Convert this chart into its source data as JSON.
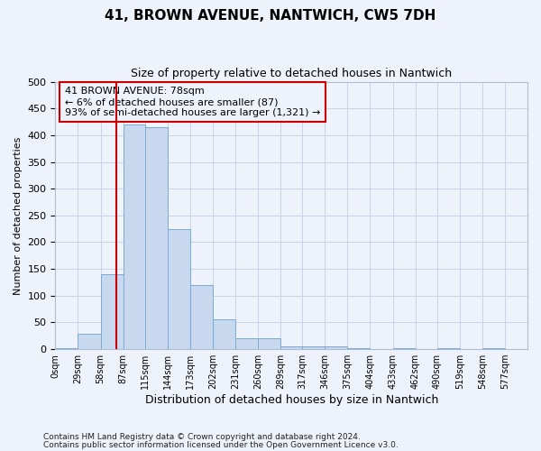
{
  "title": "41, BROWN AVENUE, NANTWICH, CW5 7DH",
  "subtitle": "Size of property relative to detached houses in Nantwich",
  "xlabel": "Distribution of detached houses by size in Nantwich",
  "ylabel": "Number of detached properties",
  "footnote1": "Contains HM Land Registry data © Crown copyright and database right 2024.",
  "footnote2": "Contains public sector information licensed under the Open Government Licence v3.0.",
  "property_line_x": 78,
  "annotation_text": "41 BROWN AVENUE: 78sqm\n← 6% of detached houses are smaller (87)\n93% of semi-detached houses are larger (1,321) →",
  "bin_edges": [
    0,
    29,
    58,
    87,
    115,
    144,
    173,
    202,
    231,
    260,
    289,
    317,
    346,
    375,
    404,
    433,
    462,
    490,
    519,
    548,
    577
  ],
  "bar_heights": [
    1,
    28,
    140,
    420,
    415,
    225,
    120,
    55,
    20,
    20,
    5,
    5,
    5,
    1,
    0,
    1,
    0,
    1,
    0,
    1
  ],
  "bar_color": "#c8d8ee",
  "bar_edge_color": "#7aaad4",
  "grid_color": "#c8d4e8",
  "annotation_box_color": "#cc0000",
  "background_color": "#eef2fa",
  "ylim": [
    0,
    500
  ],
  "yticks": [
    0,
    50,
    100,
    150,
    200,
    250,
    300,
    350,
    400,
    450,
    500
  ]
}
